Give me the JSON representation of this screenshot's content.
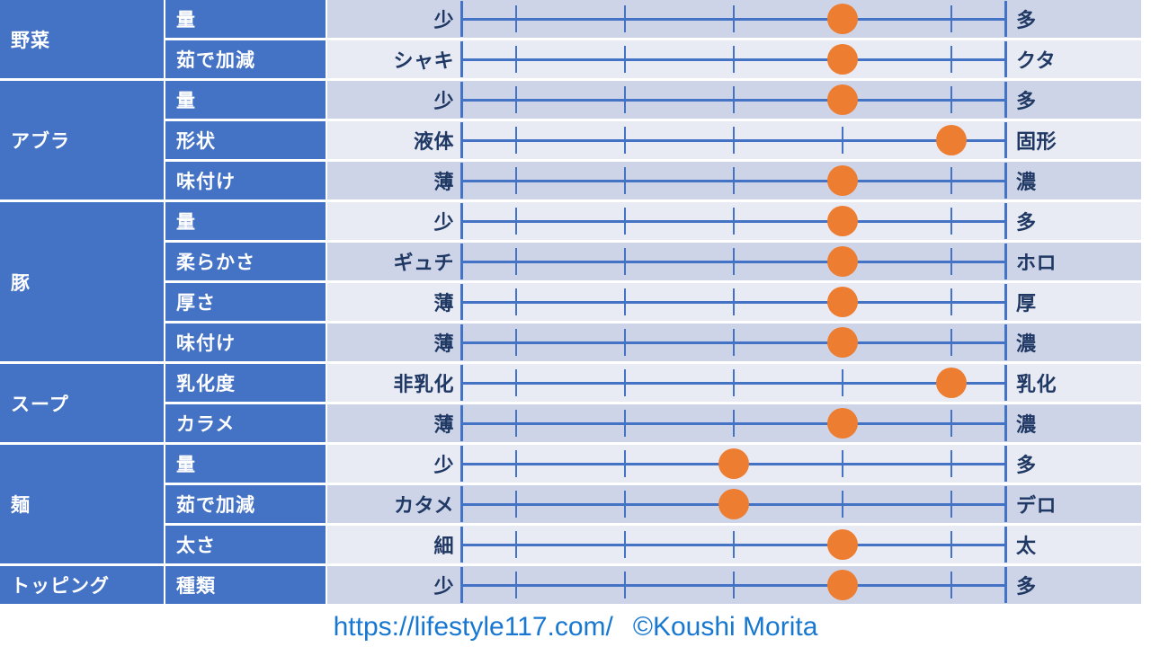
{
  "chart_data": {
    "type": "table",
    "description": "Ramen attribute rating chart: each row is a slider from a min-label to a max-label with an orange marker",
    "scale": {
      "min": 0,
      "max": 10,
      "ticks": [
        0,
        1,
        3,
        5,
        7,
        9,
        10
      ]
    },
    "rows": [
      {
        "category": "野菜",
        "attribute": "量",
        "min_label": "少",
        "max_label": "多",
        "value": 7
      },
      {
        "category": "野菜",
        "attribute": "茹で加減",
        "min_label": "シャキ",
        "max_label": "クタ",
        "value": 7
      },
      {
        "category": "アブラ",
        "attribute": "量",
        "min_label": "少",
        "max_label": "多",
        "value": 7
      },
      {
        "category": "アブラ",
        "attribute": "形状",
        "min_label": "液体",
        "max_label": "固形",
        "value": 9
      },
      {
        "category": "アブラ",
        "attribute": "味付け",
        "min_label": "薄",
        "max_label": "濃",
        "value": 7
      },
      {
        "category": "豚",
        "attribute": "量",
        "min_label": "少",
        "max_label": "多",
        "value": 7
      },
      {
        "category": "豚",
        "attribute": "柔らかさ",
        "min_label": "ギュチ",
        "max_label": "ホロ",
        "value": 7
      },
      {
        "category": "豚",
        "attribute": "厚さ",
        "min_label": "薄",
        "max_label": "厚",
        "value": 7
      },
      {
        "category": "豚",
        "attribute": "味付け",
        "min_label": "薄",
        "max_label": "濃",
        "value": 7
      },
      {
        "category": "スープ",
        "attribute": "乳化度",
        "min_label": "非乳化",
        "max_label": "乳化",
        "value": 9
      },
      {
        "category": "スープ",
        "attribute": "カラメ",
        "min_label": "薄",
        "max_label": "濃",
        "value": 7
      },
      {
        "category": "麺",
        "attribute": "量",
        "min_label": "少",
        "max_label": "多",
        "value": 5
      },
      {
        "category": "麺",
        "attribute": "茹で加減",
        "min_label": "カタメ",
        "max_label": "デロ",
        "value": 5
      },
      {
        "category": "麺",
        "attribute": "太さ",
        "min_label": "細",
        "max_label": "太",
        "value": 7
      },
      {
        "category": "トッピング",
        "attribute": "種類",
        "min_label": "少",
        "max_label": "多",
        "value": 7
      }
    ]
  },
  "footer": {
    "url": "https://lifestyle117.com/",
    "credit": "©Koushi Morita"
  },
  "colors": {
    "header_blue": "#4472C4",
    "row_dark": "#CED4E7",
    "row_light": "#E9EBF4",
    "line_blue": "#4472C4",
    "dot_orange": "#ED7D31",
    "label_navy": "#1F3864",
    "footer_blue": "#1878D1"
  }
}
